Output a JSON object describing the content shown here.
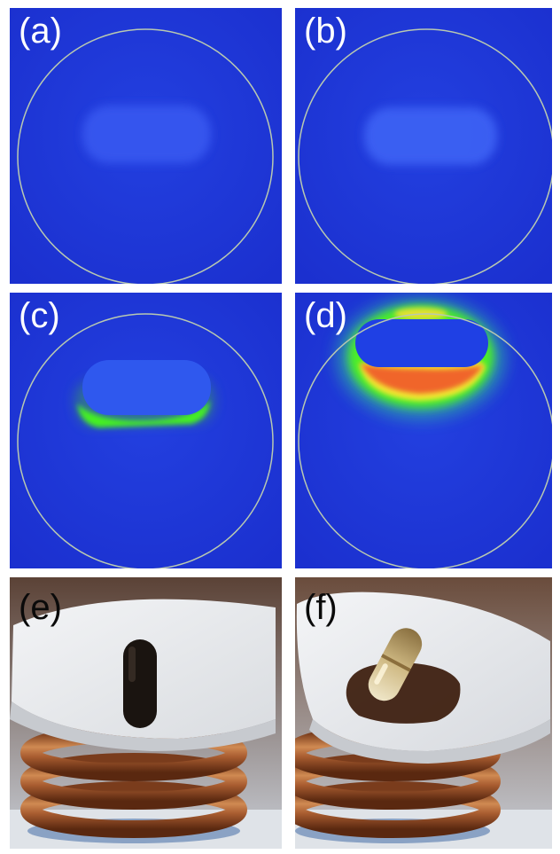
{
  "panels": [
    {
      "id": "a",
      "label": "(a)"
    },
    {
      "id": "b",
      "label": "(b)"
    },
    {
      "id": "c",
      "label": "(c)"
    },
    {
      "id": "d",
      "label": "(d)"
    },
    {
      "id": "e",
      "label": "(e)"
    },
    {
      "id": "f",
      "label": "(f)"
    }
  ],
  "colors": {
    "thermal_background": "#1e35d6",
    "thermal_object": "#3a5cf2",
    "thermal_green": "#3cf02a",
    "thermal_yellow": "#f5e832",
    "thermal_orange": "#f06a24",
    "roi_circle": "#b9c9b0",
    "copper_coil": "#b06838",
    "dish": "#e9ecef"
  }
}
